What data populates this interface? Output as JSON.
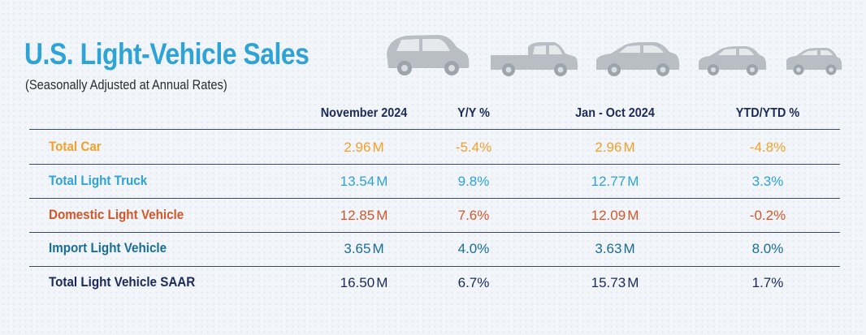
{
  "chart_data": {
    "type": "table",
    "title": "U.S. Light-Vehicle Sales",
    "subtitle": "(Seasonally Adjusted at Annual Rates)",
    "columns": [
      "November 2024",
      "Y/Y %",
      "Jan - Oct 2024",
      "YTD/YTD %"
    ],
    "unit": "M",
    "rows": [
      {
        "label": "Total Car",
        "color": "#f2a12b",
        "values": [
          "2.96",
          "-5.4%",
          "2.96",
          "-4.8%"
        ]
      },
      {
        "label": "Total Light Truck",
        "color": "#2ea3d6",
        "values": [
          "13.54",
          "9.8%",
          "12.77",
          "3.3%"
        ]
      },
      {
        "label": "Domestic Light Vehicle",
        "color": "#d4572a",
        "values": [
          "12.85",
          "7.6%",
          "12.09",
          "-0.2%"
        ]
      },
      {
        "label": "Import Light Vehicle",
        "color": "#1a6e94",
        "values": [
          "3.65",
          "4.0%",
          "3.63",
          "8.0%"
        ]
      },
      {
        "label": "Total Light Vehicle SAAR",
        "color": "#1c2a55",
        "values": [
          "16.50",
          "6.7%",
          "15.73",
          "1.7%"
        ]
      }
    ]
  },
  "icons": [
    "minivan-icon",
    "pickup-truck-icon",
    "sedan-icon",
    "coupe-icon",
    "hatchback-icon"
  ]
}
